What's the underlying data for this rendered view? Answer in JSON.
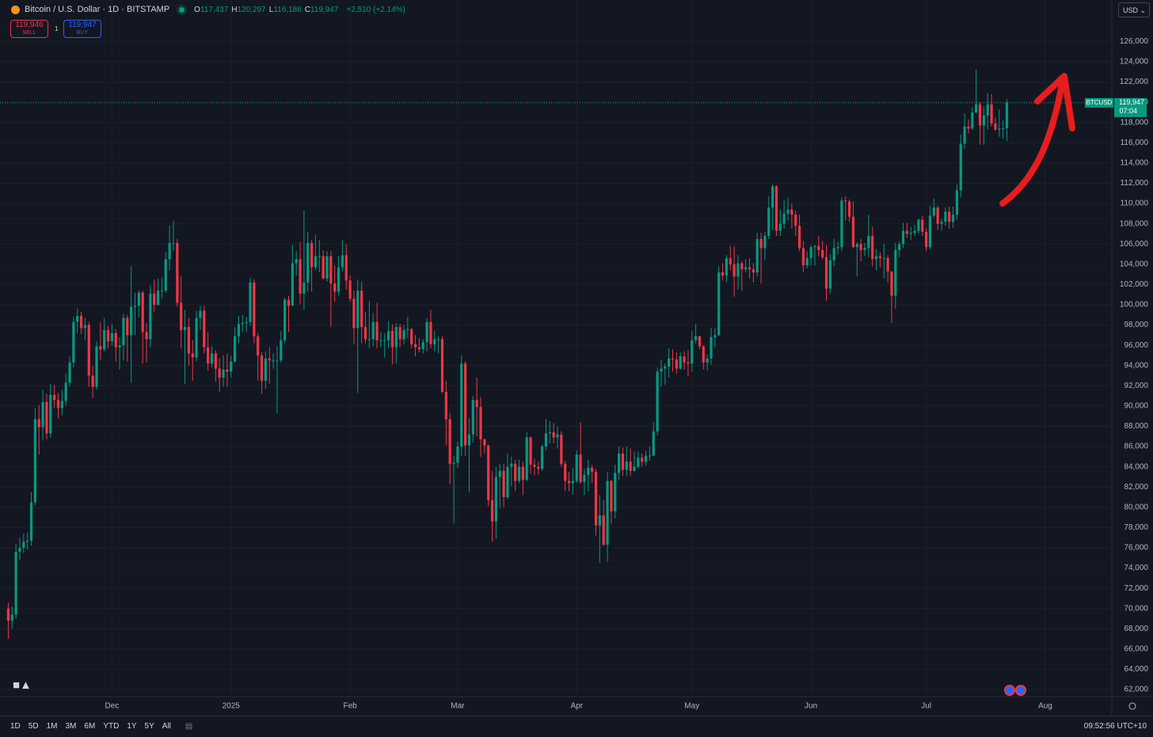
{
  "header": {
    "symbol_title": "Bitcoin / U.S. Dollar · 1D · BITSTAMP",
    "ohlc": [
      {
        "key": "O",
        "value": "117,437"
      },
      {
        "key": "H",
        "value": "120,297"
      },
      {
        "key": "L",
        "value": "116,186"
      },
      {
        "key": "C",
        "value": "119,947"
      }
    ],
    "change": "+2,510 (+2.14%)",
    "sell": {
      "price": "119,946",
      "label": "SELL"
    },
    "spread": "1",
    "buy": {
      "price": "119,947",
      "label": "BUY"
    },
    "currency": "USD"
  },
  "toolbar": {
    "ranges": [
      "1D",
      "5D",
      "1M",
      "3M",
      "6M",
      "YTD",
      "1Y",
      "5Y",
      "All"
    ],
    "clock": "09:52:56 UTC+10"
  },
  "chart_data": {
    "type": "candlestick",
    "up_color": "#089981",
    "down_color": "#f23645",
    "grid": true,
    "last_price": {
      "symbol": "BTCUSD",
      "value": 119947,
      "label": "119,947",
      "countdown": "07:04"
    },
    "xlim": [
      -0.5,
      286.5
    ],
    "xticks": [
      {
        "value": 27,
        "label": "Dec"
      },
      {
        "value": 58,
        "label": "2025"
      },
      {
        "value": 89,
        "label": "Feb"
      },
      {
        "value": 117,
        "label": "Mar"
      },
      {
        "value": 148,
        "label": "Apr"
      },
      {
        "value": 178,
        "label": "May"
      },
      {
        "value": 209,
        "label": "Jun"
      },
      {
        "value": 239,
        "label": "Jul"
      },
      {
        "value": 270,
        "label": "Aug"
      }
    ],
    "ylim": [
      61300,
      130100
    ],
    "yticks": [
      {
        "value": 62000,
        "label": "62,000"
      },
      {
        "value": 64000,
        "label": "64,000"
      },
      {
        "value": 66000,
        "label": "66,000"
      },
      {
        "value": 68000,
        "label": "68,000"
      },
      {
        "value": 70000,
        "label": "70,000"
      },
      {
        "value": 72000,
        "label": "72,000"
      },
      {
        "value": 74000,
        "label": "74,000"
      },
      {
        "value": 76000,
        "label": "76,000"
      },
      {
        "value": 78000,
        "label": "78,000"
      },
      {
        "value": 80000,
        "label": "80,000"
      },
      {
        "value": 82000,
        "label": "82,000"
      },
      {
        "value": 84000,
        "label": "84,000"
      },
      {
        "value": 86000,
        "label": "86,000"
      },
      {
        "value": 88000,
        "label": "88,000"
      },
      {
        "value": 90000,
        "label": "90,000"
      },
      {
        "value": 92000,
        "label": "92,000"
      },
      {
        "value": 94000,
        "label": "94,000"
      },
      {
        "value": 96000,
        "label": "96,000"
      },
      {
        "value": 98000,
        "label": "98,000"
      },
      {
        "value": 100000,
        "label": "100,000"
      },
      {
        "value": 102000,
        "label": "102,000"
      },
      {
        "value": 104000,
        "label": "104,000"
      },
      {
        "value": 106000,
        "label": "106,000"
      },
      {
        "value": 108000,
        "label": "108,000"
      },
      {
        "value": 110000,
        "label": "110,000"
      },
      {
        "value": 112000,
        "label": "112,000"
      },
      {
        "value": 114000,
        "label": "114,000"
      },
      {
        "value": 116000,
        "label": "116,000"
      },
      {
        "value": 118000,
        "label": "118,000"
      },
      {
        "value": 120000,
        "label": "120,000"
      },
      {
        "value": 122000,
        "label": "122,000"
      },
      {
        "value": 124000,
        "label": "124,000"
      },
      {
        "value": 126000,
        "label": "126,000"
      }
    ],
    "open": [
      70000,
      68800,
      69400,
      75600,
      76000,
      76600,
      76700,
      80500,
      88700,
      87900,
      90400,
      87300,
      91100,
      90600,
      89800,
      90500,
      92300,
      94300,
      98300,
      98900,
      97700,
      98000,
      93000,
      91900,
      95900,
      95600,
      97500,
      96400,
      97200,
      95800,
      96000,
      98700,
      97000,
      99800,
      99900,
      101200,
      97300,
      96600,
      101100,
      100000,
      101400,
      101400,
      104500,
      106100,
      106100,
      100200,
      97500,
      97800,
      95200,
      94800,
      98700,
      99400,
      95800,
      94200,
      95200,
      93700,
      92800,
      93600,
      93400,
      94400,
      96900,
      98100,
      98200,
      98300,
      102200,
      96900,
      95000,
      92500,
      94700,
      94500,
      94500,
      94500,
      96500,
      100500,
      99900,
      104100,
      104500,
      101100,
      102200,
      106100,
      103700,
      104800,
      104800,
      102600,
      104800,
      102100,
      101300,
      103700,
      104900,
      102400,
      100600,
      97700,
      101400,
      97800,
      96600,
      96600,
      98300,
      96500,
      96500,
      96500,
      97400,
      95800,
      97800,
      96600,
      97500,
      97600,
      96100,
      95800,
      95600,
      96300,
      98300,
      96100,
      96600,
      96600,
      91400,
      88700,
      84300,
      84400,
      86000,
      94200,
      86100,
      87200,
      90600,
      89900,
      86700,
      86100,
      80700,
      78600,
      83000,
      83600,
      81000,
      84000,
      84300,
      82600,
      84000,
      82700,
      86900,
      84200,
      84000,
      83800,
      86000,
      87300,
      87400,
      86900,
      87200,
      84300,
      82600,
      82400,
      82600,
      85200,
      82500,
      83200,
      83900,
      83500,
      78200,
      79200,
      76300,
      82600,
      79600,
      83400,
      85300,
      83700,
      84500,
      83600,
      84000,
      84900,
      84500,
      85100,
      85100,
      87500,
      93400,
      93700,
      93900,
      94700,
      94600,
      93700,
      94900,
      94300,
      94200,
      96500,
      96900,
      95900,
      94300,
      94700,
      96800,
      97000,
      103200,
      102900,
      104600,
      104000,
      102800,
      104100,
      103500,
      103700,
      103500,
      103200,
      106500,
      105600,
      106800,
      109600,
      111700,
      107300,
      108000,
      109000,
      109400,
      108900,
      107800,
      105600,
      103900,
      104600,
      105700,
      105800,
      105400,
      104700,
      101600,
      104400,
      105600,
      105700,
      110300,
      110200,
      108700,
      105700,
      106000,
      105400,
      105600,
      106800,
      104500,
      104800,
      104600,
      104600,
      103300,
      100900,
      105400,
      106000,
      107300,
      107000,
      107100,
      107300,
      108400,
      107200,
      105700,
      108800,
      109600,
      108000,
      108200,
      109200,
      108200,
      108900,
      111300,
      115900,
      117600,
      117400,
      119000,
      119800,
      117700,
      118700,
      119800,
      117900,
      117300,
      117400,
      117437
    ],
    "high": [
      70600,
      70200,
      76400,
      77000,
      77400,
      77500,
      81500,
      89800,
      90100,
      91600,
      91200,
      92200,
      92100,
      91300,
      91600,
      93200,
      94900,
      98800,
      99600,
      99300,
      98700,
      98300,
      94000,
      96400,
      98300,
      98700,
      97900,
      98100,
      97600,
      96800,
      99100,
      99000,
      103800,
      101200,
      101400,
      101400,
      98200,
      101900,
      102500,
      102600,
      102700,
      105200,
      107800,
      108300,
      106500,
      102800,
      99500,
      98700,
      96500,
      99400,
      99900,
      99900,
      97300,
      95900,
      95500,
      94700,
      95000,
      95200,
      95000,
      97800,
      98900,
      99000,
      98800,
      102700,
      102500,
      97200,
      95300,
      95400,
      95800,
      95200,
      95900,
      97400,
      100700,
      100900,
      105900,
      105300,
      106200,
      109300,
      107200,
      106400,
      106900,
      106400,
      105400,
      105300,
      105300,
      103900,
      104800,
      106400,
      106000,
      102900,
      101400,
      102500,
      102300,
      99300,
      100400,
      99200,
      100200,
      97300,
      97200,
      98400,
      98100,
      98200,
      98100,
      98000,
      98800,
      97700,
      97000,
      96700,
      96600,
      98700,
      99500,
      97400,
      96900,
      96900,
      92500,
      89300,
      85100,
      86500,
      95000,
      94400,
      88800,
      91000,
      92800,
      90900,
      86800,
      86200,
      83600,
      84000,
      84300,
      84300,
      85300,
      85000,
      84700,
      84700,
      84500,
      87400,
      87000,
      84800,
      84500,
      86200,
      88700,
      88500,
      88300,
      88000,
      87500,
      84600,
      83500,
      83900,
      85600,
      88400,
      83800,
      84700,
      84200,
      83800,
      81200,
      80700,
      83500,
      82700,
      84200,
      86000,
      85900,
      86000,
      85800,
      85500,
      85500,
      85300,
      85600,
      86000,
      88400,
      93800,
      94600,
      94200,
      95700,
      95600,
      95300,
      95300,
      95400,
      95500,
      97400,
      98100,
      96900,
      96000,
      95100,
      97700,
      97700,
      103800,
      104100,
      104900,
      105800,
      105800,
      104900,
      104300,
      104500,
      104600,
      104100,
      107100,
      107100,
      107200,
      110700,
      111900,
      111800,
      109400,
      110400,
      110600,
      110000,
      109300,
      108900,
      106300,
      105300,
      105900,
      105900,
      106800,
      106300,
      105900,
      105000,
      106500,
      106200,
      110600,
      110700,
      110400,
      110200,
      106200,
      106500,
      106100,
      108900,
      107700,
      105500,
      105200,
      106000,
      104900,
      103300,
      106100,
      106300,
      108100,
      108100,
      107700,
      107900,
      108500,
      108800,
      107600,
      109800,
      110500,
      109800,
      108500,
      109600,
      109700,
      109700,
      111900,
      116800,
      118900,
      118300,
      119500,
      123200,
      120000,
      119600,
      120900,
      120800,
      118500,
      119300,
      118200,
      120297
    ],
    "low": [
      67000,
      68000,
      69000,
      74800,
      75500,
      75800,
      76200,
      80200,
      85200,
      86600,
      86700,
      86900,
      89800,
      88800,
      89100,
      90000,
      91900,
      93800,
      97200,
      97100,
      96500,
      91900,
      90800,
      91600,
      94600,
      95400,
      95700,
      95900,
      94400,
      93600,
      94500,
      94400,
      92300,
      97000,
      98800,
      94200,
      94300,
      95800,
      99300,
      99900,
      100600,
      101200,
      103400,
      105300,
      99800,
      95700,
      92200,
      94000,
      92500,
      94400,
      97500,
      95200,
      93500,
      93800,
      92400,
      91400,
      91900,
      91900,
      92800,
      94300,
      96200,
      97300,
      97300,
      97900,
      96200,
      92500,
      91200,
      91700,
      92200,
      93700,
      89300,
      94300,
      96200,
      97300,
      99900,
      102900,
      100100,
      99500,
      101300,
      101300,
      103400,
      103200,
      102500,
      102300,
      97800,
      100300,
      100900,
      103300,
      101500,
      100300,
      96100,
      91300,
      96200,
      96200,
      95700,
      95900,
      95700,
      95800,
      94800,
      95700,
      94100,
      94200,
      95800,
      96100,
      96700,
      95700,
      94900,
      95300,
      95200,
      95400,
      95700,
      95400,
      95200,
      91300,
      86100,
      82300,
      78400,
      83900,
      85100,
      85100,
      81500,
      86400,
      87000,
      85000,
      85300,
      80100,
      76600,
      76900,
      79900,
      80000,
      80800,
      82100,
      81600,
      82400,
      81200,
      82600,
      83300,
      83200,
      83200,
      83600,
      85600,
      86300,
      86300,
      85800,
      84000,
      81600,
      81600,
      81300,
      82400,
      82300,
      81200,
      81600,
      82400,
      77200,
      74500,
      76200,
      74600,
      78400,
      78900,
      82700,
      83100,
      83100,
      83100,
      83500,
      83800,
      84000,
      84100,
      84600,
      85100,
      87100,
      91900,
      92100,
      92800,
      93400,
      93200,
      93600,
      93600,
      92900,
      93400,
      96200,
      95600,
      93600,
      93500,
      94100,
      95800,
      96900,
      102400,
      102200,
      103400,
      100800,
      101500,
      101400,
      103200,
      102600,
      102200,
      102800,
      102100,
      104400,
      106500,
      107400,
      106800,
      106800,
      107500,
      108300,
      107500,
      106800,
      105300,
      103200,
      103600,
      103900,
      103900,
      104800,
      104500,
      100400,
      101100,
      103800,
      105000,
      105300,
      108300,
      108200,
      105600,
      102800,
      104300,
      104800,
      104700,
      103800,
      103400,
      103700,
      102600,
      102200,
      98200,
      99600,
      104700,
      105600,
      106600,
      106400,
      106800,
      107000,
      106800,
      105300,
      105500,
      108600,
      107400,
      107300,
      107800,
      107500,
      107600,
      108400,
      110600,
      115400,
      116900,
      117300,
      118900,
      115800,
      115800,
      117300,
      117600,
      117200,
      116600,
      116400,
      116186
    ],
    "close": [
      68800,
      69400,
      75600,
      76000,
      76600,
      76700,
      80500,
      88700,
      87900,
      90400,
      87300,
      91100,
      90600,
      89800,
      90500,
      92300,
      94300,
      98300,
      98900,
      97700,
      98000,
      93000,
      91900,
      95900,
      95600,
      97500,
      96400,
      97200,
      95800,
      96000,
      98700,
      97000,
      99800,
      99900,
      101200,
      97300,
      96600,
      101100,
      100000,
      101400,
      101400,
      104500,
      106100,
      106100,
      100200,
      97500,
      97800,
      95200,
      94800,
      98700,
      99400,
      95800,
      94200,
      95200,
      93700,
      92800,
      93600,
      93400,
      94400,
      96900,
      98100,
      98200,
      98300,
      102200,
      96900,
      95000,
      92500,
      94700,
      94500,
      94500,
      94500,
      96500,
      100500,
      99900,
      104100,
      104500,
      101100,
      102200,
      106100,
      103700,
      104800,
      104800,
      102600,
      104800,
      102100,
      101300,
      103700,
      104900,
      102400,
      100600,
      97700,
      101400,
      97800,
      96600,
      96600,
      98300,
      96500,
      96500,
      96500,
      97400,
      95800,
      97800,
      96600,
      97500,
      97600,
      96100,
      95800,
      95600,
      96300,
      98300,
      96100,
      96600,
      96600,
      91400,
      88700,
      84300,
      84400,
      86000,
      94200,
      86100,
      87200,
      90600,
      89900,
      86700,
      86100,
      80700,
      78600,
      83000,
      83600,
      81000,
      84000,
      84300,
      82600,
      84000,
      82700,
      86900,
      84200,
      84000,
      83800,
      86000,
      87300,
      87400,
      86900,
      87200,
      84300,
      82600,
      82400,
      82600,
      85200,
      82500,
      83200,
      83900,
      83500,
      78200,
      79200,
      76300,
      82600,
      79600,
      83400,
      85300,
      83700,
      84500,
      83600,
      84000,
      84900,
      84500,
      85100,
      85100,
      87500,
      93400,
      93700,
      93900,
      94700,
      94600,
      93700,
      94900,
      94300,
      94200,
      96500,
      96900,
      95900,
      94300,
      94700,
      96800,
      97000,
      103200,
      102900,
      104600,
      104000,
      102800,
      104100,
      103500,
      103700,
      103500,
      103200,
      106500,
      105600,
      106800,
      109600,
      111700,
      107300,
      108000,
      109000,
      109400,
      108900,
      107800,
      105600,
      103900,
      104600,
      105700,
      105800,
      105400,
      104700,
      101600,
      104400,
      105600,
      105700,
      110300,
      110200,
      108700,
      105700,
      106000,
      105400,
      105600,
      106800,
      104500,
      104800,
      104600,
      104600,
      103300,
      100900,
      105400,
      106000,
      107300,
      107000,
      107100,
      107300,
      108400,
      107200,
      105700,
      108800,
      109600,
      108000,
      108200,
      109200,
      108200,
      108900,
      111300,
      115900,
      117600,
      117400,
      119000,
      119800,
      117700,
      118700,
      119800,
      117900,
      117300,
      117400,
      117437,
      119947
    ]
  }
}
